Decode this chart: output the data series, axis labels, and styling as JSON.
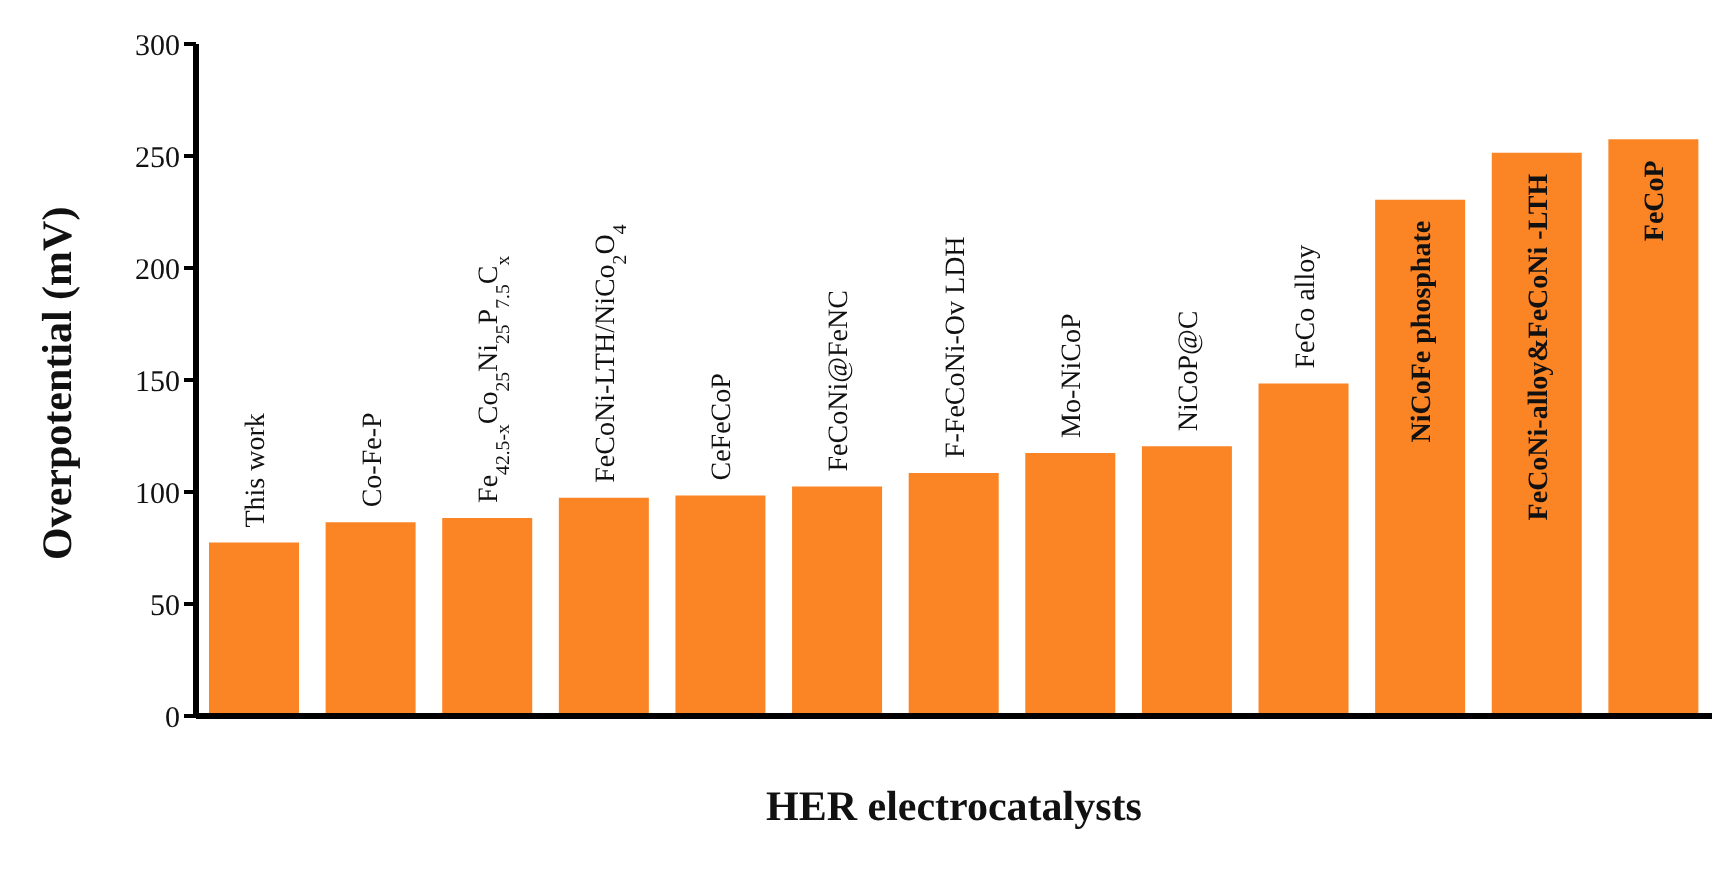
{
  "chart_data": {
    "type": "bar",
    "xlabel": "HER electrocatalysts",
    "ylabel": "Overpotential (mV)",
    "categories": [
      "This work",
      "Co-Fe-P",
      "Fe$_{42.5-x}$Co$_{25}$Ni$_{25}$P$_{7.5}$C$_{x}$",
      "FeCoNi-LTH/NiCo$_{2}$O$_{4}$",
      "CeFeCoP",
      "FeCoNi@FeNC",
      "F-FeCoNi-Ov LDH",
      "Mo-NiCoP",
      "NiCoP@C",
      "FeCo alloy",
      "NiCoFe phosphate",
      "FeCoNi-alloy&FeCoNi -LTH",
      "FeCoP"
    ],
    "values": [
      77,
      86,
      88,
      97,
      98,
      102,
      108,
      117,
      120,
      148,
      230,
      251,
      257
    ],
    "color": "#fb8424",
    "ylim": [
      0,
      300
    ],
    "yticks": [
      0,
      50,
      100,
      150,
      200,
      250,
      300
    ],
    "tick_labels": "y"
  }
}
